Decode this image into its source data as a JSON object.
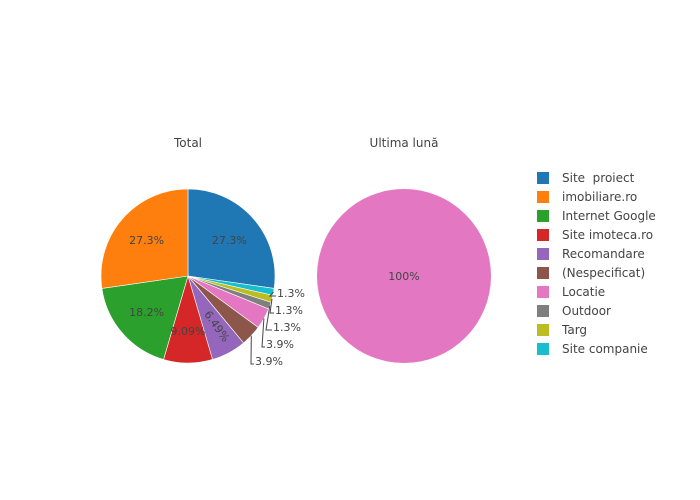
{
  "chart_data": [
    {
      "type": "pie",
      "title": "Total",
      "slices": [
        {
          "label": "Site  proiect",
          "value": 27.3,
          "text": "27.3%",
          "color": "#1f77b4"
        },
        {
          "label": "Site companie",
          "value": 1.3,
          "text": "1.3%",
          "color": "#17becf"
        },
        {
          "label": "Targ",
          "value": 1.3,
          "text": "1.3%",
          "color": "#bcbd22"
        },
        {
          "label": "Outdoor",
          "value": 1.3,
          "text": "1.3%",
          "color": "#7f7f7f"
        },
        {
          "label": "Locatie",
          "value": 3.9,
          "text": "3.9%",
          "color": "#e377c2"
        },
        {
          "label": "(Nespecificat)",
          "value": 3.9,
          "text": "3.9%",
          "color": "#8c564b"
        },
        {
          "label": "Recomandare",
          "value": 6.49,
          "text": "6.49%",
          "color": "#9467bd"
        },
        {
          "label": "Site imoteca.ro",
          "value": 9.09,
          "text": "9.09%",
          "color": "#d62728"
        },
        {
          "label": "Internet Google",
          "value": 18.2,
          "text": "18.2%",
          "color": "#2ca02c"
        },
        {
          "label": "imobiliare.ro",
          "value": 27.3,
          "text": "27.3%",
          "color": "#ff7f0e"
        }
      ]
    },
    {
      "type": "pie",
      "title": "Ultima lună",
      "slices": [
        {
          "label": "Locatie",
          "value": 100,
          "text": "100%",
          "color": "#e377c2"
        }
      ]
    }
  ],
  "legend": {
    "placement": "right",
    "items": [
      {
        "label": "Site  proiect",
        "color": "#1f77b4"
      },
      {
        "label": "imobiliare.ro",
        "color": "#ff7f0e"
      },
      {
        "label": "Internet Google",
        "color": "#2ca02c"
      },
      {
        "label": "Site imoteca.ro",
        "color": "#d62728"
      },
      {
        "label": "Recomandare",
        "color": "#9467bd"
      },
      {
        "label": "(Nespecificat)",
        "color": "#8c564b"
      },
      {
        "label": "Locatie",
        "color": "#e377c2"
      },
      {
        "label": "Outdoor",
        "color": "#7f7f7f"
      },
      {
        "label": "Targ",
        "color": "#bcbd22"
      },
      {
        "label": "Site companie",
        "color": "#17becf"
      }
    ]
  }
}
